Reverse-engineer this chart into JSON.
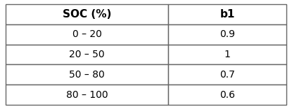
{
  "col_headers": [
    "SOC (%)",
    "b1"
  ],
  "rows": [
    [
      "0 – 20",
      "0.9"
    ],
    [
      "20 – 50",
      "1"
    ],
    [
      "50 – 80",
      "0.7"
    ],
    [
      "80 – 100",
      "0.6"
    ]
  ],
  "header_fontsize": 11,
  "cell_fontsize": 10,
  "header_fontweight": "bold",
  "bg_color": "#ffffff",
  "edge_color": "#666666",
  "line_width": 1.0,
  "fig_width": 4.15,
  "fig_height": 1.56,
  "dpi": 100
}
